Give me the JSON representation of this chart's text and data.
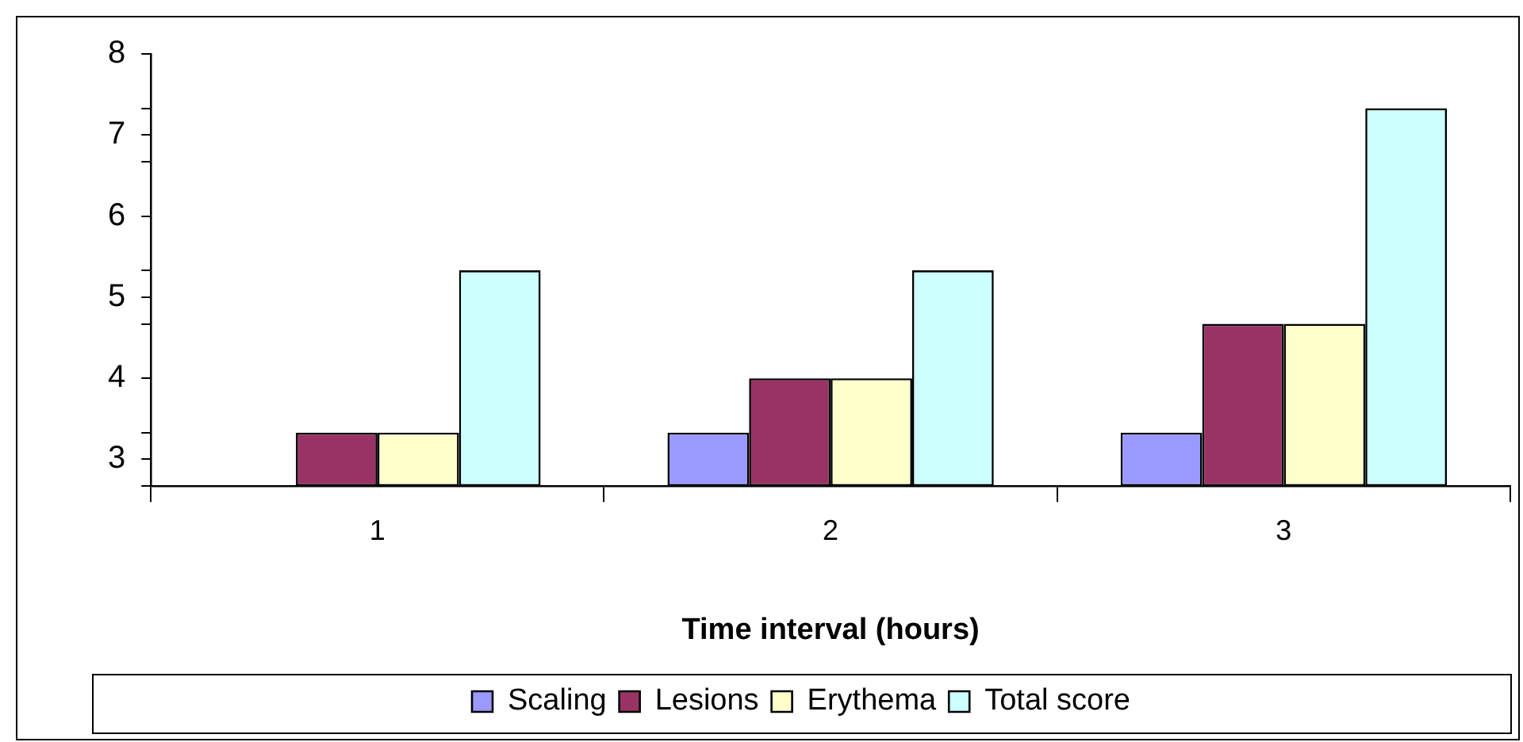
{
  "chart_data": {
    "type": "bar",
    "xlabel": "Time interval (hours)",
    "categories": [
      "1",
      "2",
      "3"
    ],
    "series": [
      {
        "name": "Scaling",
        "color": "#9999ff",
        "values": [
          2.67,
          3.33,
          3.33
        ]
      },
      {
        "name": "Lesions",
        "color": "#993366",
        "values": [
          3.33,
          4,
          4.67
        ]
      },
      {
        "name": "Erythema",
        "color": "#ffffcc",
        "values": [
          3.33,
          4,
          4.67
        ]
      },
      {
        "name": "Total score",
        "color": "#ccffff",
        "values": [
          5.33,
          5.33,
          7.33
        ]
      }
    ],
    "ylim": [
      2.67,
      8
    ],
    "yticks": [
      {
        "value": 2.67,
        "label": null
      },
      3,
      {
        "value": 3.33,
        "label": null
      },
      4,
      {
        "value": 4.67,
        "label": null
      },
      5,
      {
        "value": 5.33,
        "label": null
      },
      6,
      {
        "value": 6.67,
        "label": null
      },
      7,
      {
        "value": 7.33,
        "label": null
      },
      8
    ],
    "grid": false,
    "legend": "bottom"
  }
}
